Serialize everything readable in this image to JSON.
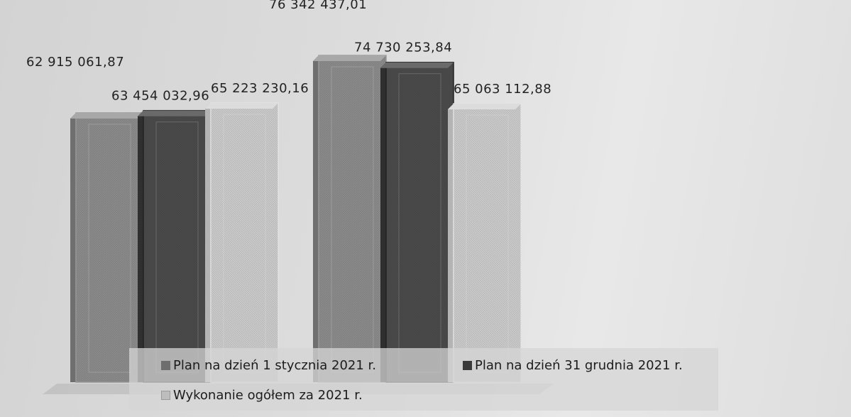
{
  "chart_data": {
    "type": "bar",
    "categories": [
      "",
      ""
    ],
    "series": [
      {
        "name": "Plan na dzień 1 stycznia 2021 r.",
        "values": [
          62915061.87,
          76342437.01
        ],
        "labels": [
          "62 915 061,87",
          "76 342 437,01"
        ],
        "color": "#8a8a8a"
      },
      {
        "name": "Plan na dzień 31 grudnia 2021 r.",
        "values": [
          63454032.96,
          74730253.84
        ],
        "labels": [
          "63 454 032,96",
          "74 730 253,84"
        ],
        "color": "#4a4a4a"
      },
      {
        "name": "Wykonanie ogółem za 2021 r.",
        "values": [
          65223230.16,
          65063112.88
        ],
        "labels": [
          "65 223 230,16",
          "65 063 112,88"
        ],
        "color": "#c9c9c9"
      }
    ],
    "title": "",
    "xlabel": "",
    "ylabel": "",
    "ylim": [
      0,
      76342437.01
    ],
    "grid": false,
    "legend": "bottom"
  }
}
